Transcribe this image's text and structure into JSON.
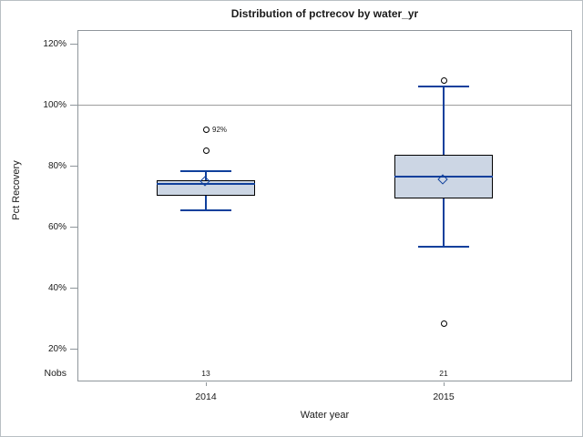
{
  "chart_data": {
    "type": "boxplot",
    "title": "Distribution of pctrecov by water_yr",
    "xlabel": "Water year",
    "ylabel": "Pct Recovery",
    "nobs_label": "Nobs",
    "y_axis": {
      "ticks": [
        120,
        100,
        80,
        60,
        40,
        20
      ],
      "tick_suffix": "%",
      "range_shown": [
        9.3,
        124.6
      ]
    },
    "reference_line_value": 100,
    "grid": "off",
    "legend": "none",
    "categories": [
      "2014",
      "2015"
    ],
    "groups": [
      {
        "label": "2014",
        "nobs": "13",
        "whisker_low": 65.5,
        "q1": 70.3,
        "median": 74.1,
        "q3": 75.5,
        "mean": 74.5,
        "whisker_high": 78.3,
        "outliers": [
          {
            "value": 85,
            "label": ""
          },
          {
            "value": 92,
            "label": "92%"
          }
        ]
      },
      {
        "label": "2015",
        "nobs": "21",
        "whisker_low": 53.5,
        "q1": 69.5,
        "median": 76.5,
        "q3": 83.8,
        "mean": 75.1,
        "whisker_high": 106,
        "outliers": [
          {
            "value": 28.5,
            "label": ""
          },
          {
            "value": 108,
            "label": ""
          }
        ]
      }
    ],
    "colors": {
      "box_fill": "#ccd6e4",
      "box_border": "#000000",
      "line": "#10409c",
      "outlier_stroke": "#000000",
      "reference_line": "#9d9d9d",
      "frame": "#8f969b",
      "text": "#1a1a1a"
    }
  }
}
